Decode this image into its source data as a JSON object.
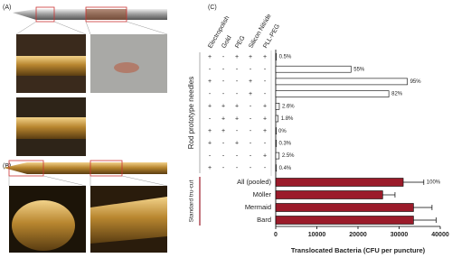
{
  "panel_labels": [
    "(A)",
    "(B)",
    "(C)"
  ],
  "chart_data": {
    "type": "hbar",
    "xlabel": "Translocated Bacteria (CFU per puncture)",
    "xlim": [
      0,
      40000
    ],
    "xticks": [
      0,
      10000,
      20000,
      30000,
      40000
    ],
    "coatings": [
      "Electropolish",
      "Gold",
      "PEG",
      "Silicon Nitride",
      "PLL-PEG"
    ],
    "matrix": [
      [
        "+",
        "-",
        "+",
        "+",
        "+"
      ],
      [
        "-",
        "-",
        "-",
        "-",
        "-"
      ],
      [
        "+",
        "-",
        "-",
        "+",
        "-"
      ],
      [
        "-",
        "-",
        "-",
        "+",
        "-"
      ],
      [
        "+",
        "+",
        "+",
        "-",
        "+"
      ],
      [
        "-",
        "+",
        "+",
        "-",
        "+"
      ],
      [
        "+",
        "+",
        "-",
        "-",
        "+"
      ],
      [
        "+",
        "-",
        "+",
        "-",
        "-"
      ],
      [
        "-",
        "-",
        "-",
        "-",
        "+"
      ],
      [
        "+",
        "-",
        "-",
        "-",
        "-"
      ]
    ],
    "categories": [
      null,
      null,
      null,
      null,
      null,
      null,
      null,
      null,
      null,
      null,
      "All (pooled)",
      "Möller",
      "Mermaid",
      "Bard"
    ],
    "series": [
      {
        "name": "Rod prototype needles",
        "color": "#ffffff",
        "values": [
          150,
          18300,
          32000,
          27500,
          870,
          600,
          0,
          100,
          840,
          130,
          null,
          null,
          null,
          null
        ],
        "percent_labels": [
          "0.5%",
          "55%",
          "95%",
          "82%",
          "2.6%",
          "1.8%",
          "0%",
          "0.3%",
          "2.5%",
          "0.4%",
          null,
          null,
          null,
          null
        ]
      },
      {
        "name": "Standard tru-cut",
        "color": "#9b1b2a",
        "values": [
          null,
          null,
          null,
          null,
          null,
          null,
          null,
          null,
          null,
          null,
          31000,
          26000,
          33500,
          33500
        ],
        "errors": [
          null,
          null,
          null,
          null,
          null,
          null,
          null,
          null,
          null,
          null,
          5000,
          3000,
          4500,
          5500
        ],
        "percent_labels": [
          null,
          null,
          null,
          null,
          null,
          null,
          null,
          null,
          null,
          null,
          "100%",
          null,
          null,
          null
        ]
      }
    ]
  }
}
